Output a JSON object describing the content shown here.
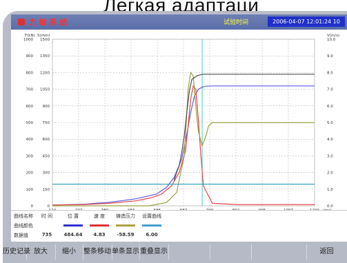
{
  "caption": "Легкая адаптаци",
  "app": {
    "title": "力 敏 系 统",
    "status_label": "试验时间",
    "datetime": "2006-04-07 12:01:24 10"
  },
  "chart_data": {
    "type": "line",
    "left_axis_titles": [
      "F(kN)",
      "S(mm)"
    ],
    "right_axis_title": "V(m/s)",
    "x_ticks": [
      "174",
      "277",
      "380",
      "483",
      "585",
      "687",
      "790",
      "892",
      "995",
      "1097",
      "1200"
    ],
    "x_unit": "(ms)",
    "left_ticks_f": [
      0,
      100,
      200,
      300,
      400,
      500,
      600,
      700,
      800,
      900,
      1000
    ],
    "left_ticks_s": [
      0,
      150,
      300,
      450,
      600,
      750,
      900,
      1050,
      1200,
      1350,
      1500
    ],
    "right_ticks": [
      "0.0",
      "1.0",
      "2.0",
      "3.0",
      "4.0",
      "5.0",
      "6.0",
      "7.0",
      "8.0",
      "9.0",
      "10.0"
    ],
    "xlim": [
      174,
      1200
    ],
    "ylim_f": [
      0,
      1000
    ],
    "grid": true,
    "cursor_x": 760,
    "series": [
      {
        "color": "#5a5ae6",
        "x": [
          174,
          300,
          400,
          500,
          580,
          620,
          650,
          680,
          700,
          715,
          730,
          745,
          760,
          775,
          800,
          900,
          1000,
          1100,
          1200
        ],
        "y": [
          5,
          10,
          22,
          42,
          70,
          110,
          170,
          280,
          430,
          560,
          660,
          700,
          712,
          718,
          720,
          720,
          720,
          720,
          720
        ]
      },
      {
        "color": "#e64646",
        "x": [
          174,
          300,
          400,
          500,
          560,
          600,
          640,
          670,
          695,
          705,
          715,
          725,
          735,
          745,
          755,
          765,
          800,
          900,
          1000,
          1100,
          1200
        ],
        "y": [
          5,
          8,
          16,
          30,
          48,
          70,
          120,
          200,
          330,
          480,
          640,
          720,
          700,
          520,
          300,
          120,
          15,
          8,
          8,
          8,
          8
        ]
      },
      {
        "color": "#9aa040",
        "x": [
          174,
          400,
          550,
          620,
          660,
          690,
          705,
          715,
          725,
          735,
          745,
          760,
          775,
          785,
          800,
          900,
          1000,
          1100,
          1200
        ],
        "y": [
          0,
          0,
          0,
          20,
          80,
          300,
          700,
          800,
          780,
          600,
          450,
          360,
          420,
          480,
          500,
          500,
          500,
          500,
          500
        ]
      },
      {
        "color": "#3aa0c8",
        "x": [
          174,
          1200
        ],
        "y": [
          130,
          130
        ]
      },
      {
        "color": "#505050",
        "x": [
          650,
          660,
          670,
          680,
          690,
          700,
          710,
          720,
          740,
          760,
          780,
          800,
          900,
          1200
        ],
        "y": [
          150,
          200,
          240,
          320,
          420,
          560,
          690,
          760,
          780,
          790,
          790,
          790,
          790,
          790
        ]
      }
    ]
  },
  "legend": {
    "row_labels": [
      "曲线名称",
      "曲线颜色",
      "数据值"
    ],
    "columns": [
      {
        "name": "时 间",
        "color": "",
        "value": "735"
      },
      {
        "name": "位 置",
        "color": "#3030d0",
        "value": "484.64"
      },
      {
        "name": "速 度",
        "color": "#e03030",
        "value": "4.83"
      },
      {
        "name": "铸造压力",
        "color": "#b0a040",
        "value": "-58.59"
      },
      {
        "name": "设置曲线",
        "color": "#40a0d0",
        "value": "6.00"
      }
    ]
  },
  "toolbar": {
    "buttons": [
      "历史记录",
      "放大",
      "缩小",
      "整条移动",
      "单条显示",
      "重叠显示",
      "",
      "",
      "",
      "返回"
    ]
  }
}
